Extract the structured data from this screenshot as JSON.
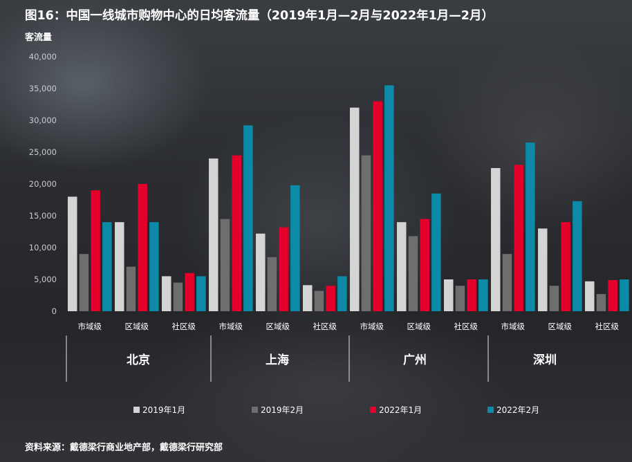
{
  "title": "图16：中国一线城市购物中心的日均客流量（2019年1月—2月与2022年1月—2月）",
  "source": "资料来源：戴德梁行商业地产部，戴德梁行研究部",
  "chart_data": {
    "type": "bar",
    "ylabel": "客流量",
    "ylim": [
      0,
      40000
    ],
    "yticks": [
      "0",
      "5,000",
      "10,000",
      "15,000",
      "20,000",
      "25,000",
      "30,000",
      "35,000",
      "40,000"
    ],
    "ytick_values": [
      0,
      5000,
      10000,
      15000,
      20000,
      25000,
      30000,
      35000,
      40000
    ],
    "grid": false,
    "legend_position": "bottom",
    "groups": [
      {
        "name": "北京",
        "categories": [
          "市域级",
          "区域级",
          "社区级"
        ]
      },
      {
        "name": "上海",
        "categories": [
          "市域级",
          "区域级",
          "社区级"
        ]
      },
      {
        "name": "广州",
        "categories": [
          "市域级",
          "区域级",
          "社区级"
        ]
      },
      {
        "name": "深圳",
        "categories": [
          "市域级",
          "区域级",
          "社区级"
        ]
      }
    ],
    "series": [
      {
        "name": "2019年1月",
        "color": "#d4d4d4",
        "values": [
          18000,
          14000,
          5500,
          24000,
          12200,
          4100,
          32000,
          14000,
          5000,
          22500,
          13000,
          4700
        ]
      },
      {
        "name": "2019年2月",
        "color": "#6e6e6e",
        "values": [
          9000,
          7000,
          4500,
          14500,
          8500,
          3200,
          24500,
          11800,
          4000,
          9000,
          4000,
          2700
        ]
      },
      {
        "name": "2022年1月",
        "color": "#e4002b",
        "values": [
          19000,
          20000,
          6000,
          24500,
          13200,
          4000,
          33000,
          14500,
          5000,
          23000,
          14000,
          4900
        ]
      },
      {
        "name": "2022年2月",
        "color": "#0d8aa8",
        "values": [
          14000,
          14000,
          5500,
          29200,
          19800,
          5500,
          35500,
          18500,
          5000,
          26500,
          17300,
          5000
        ]
      }
    ]
  }
}
